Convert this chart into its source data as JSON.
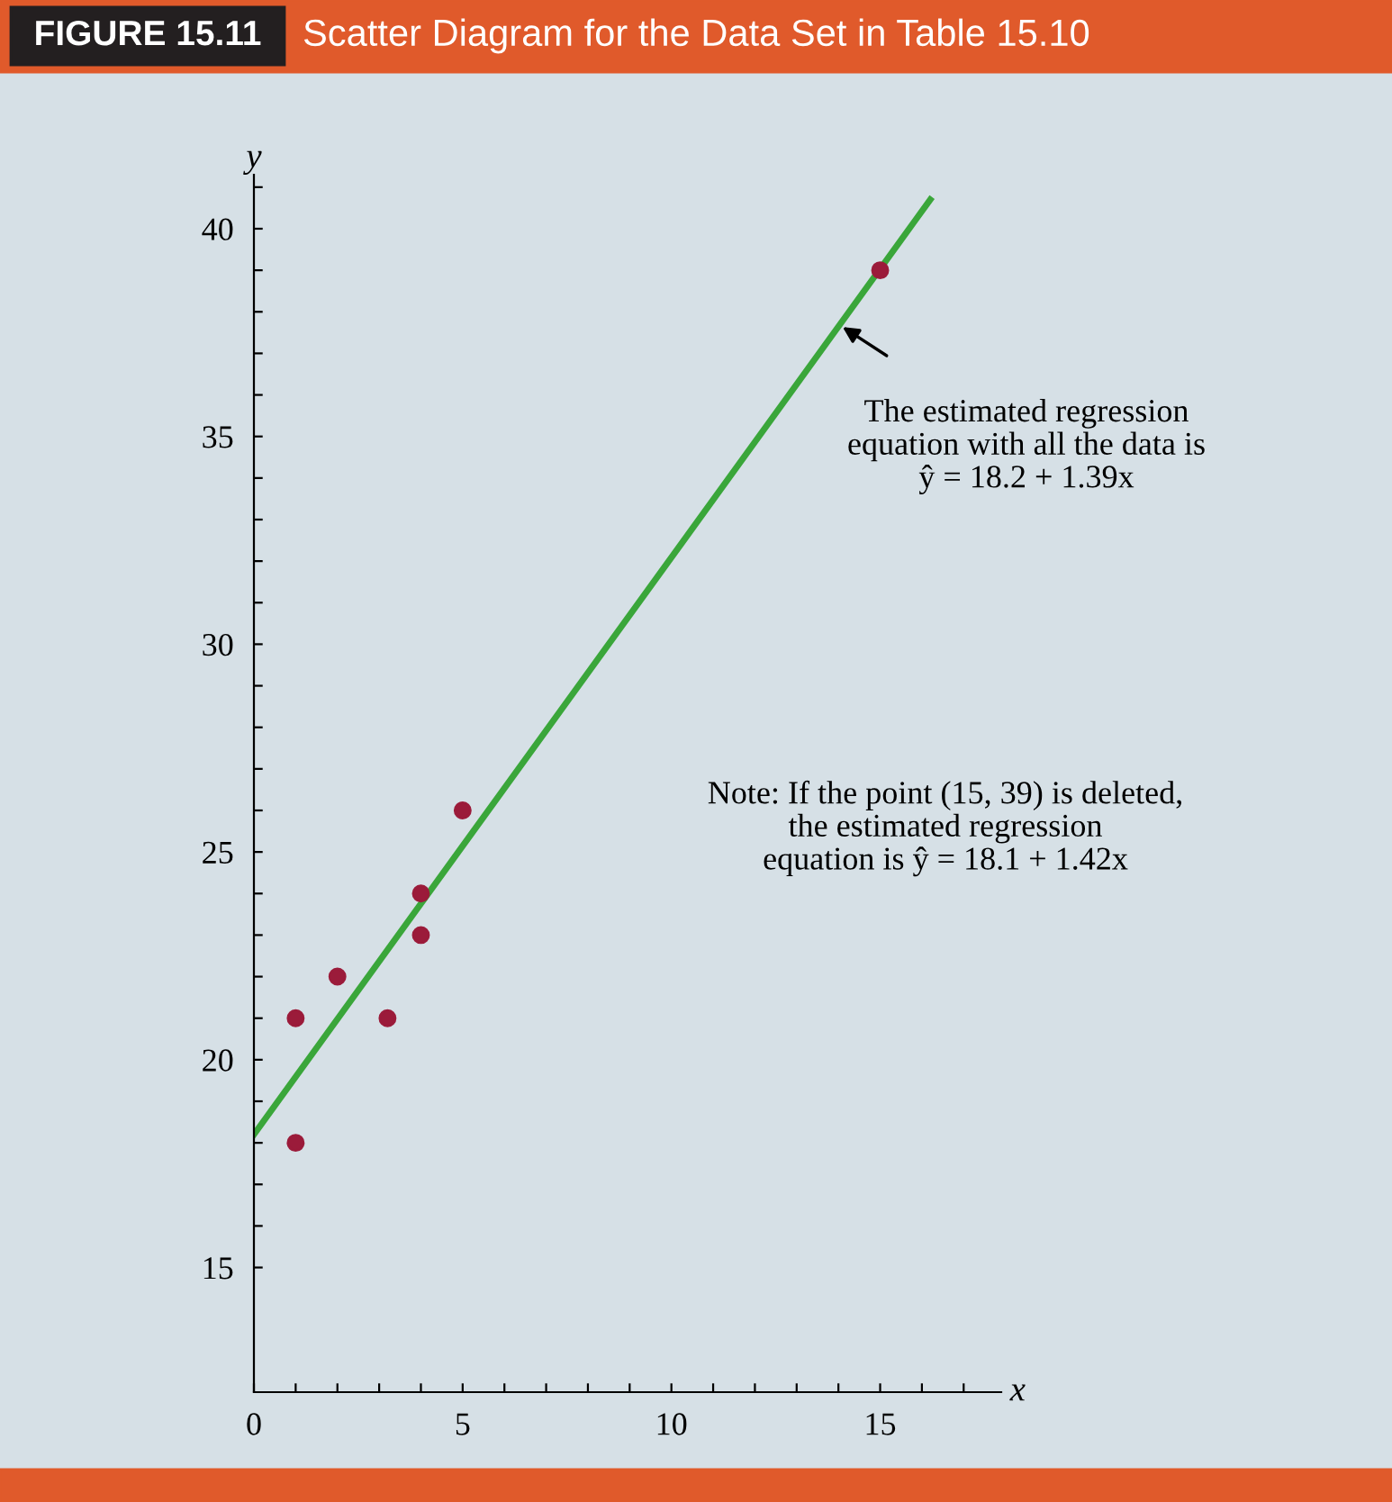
{
  "chart_data": {
    "type": "scatter",
    "title": "Scatter Diagram for the Data Set in Table 15.10",
    "subtitle": "FIGURE 15.11",
    "xlabel": "x",
    "ylabel": "y",
    "series": [
      {
        "marker": "circle",
        "color": "#9b1b3a",
        "x": [
          1,
          1,
          2,
          3.2,
          4,
          4,
          5,
          15
        ],
        "values": [
          18,
          21,
          22,
          21,
          24,
          23,
          26,
          39
        ]
      },
      {
        "type": "line",
        "color": "#3aa63a",
        "x": [
          0,
          16.2
        ],
        "values": [
          18.2,
          40.7
        ]
      }
    ],
    "xlim": [
      0,
      17.9
    ],
    "ylim": [
      12,
      41.3
    ],
    "xticks": [
      0,
      {
        "value": 1,
        "label": null
      },
      {
        "value": 2,
        "label": null
      },
      {
        "value": 3,
        "label": null
      },
      {
        "value": 4,
        "label": null
      },
      5,
      {
        "value": 6,
        "label": null
      },
      {
        "value": 7,
        "label": null
      },
      {
        "value": 8,
        "label": null
      },
      {
        "value": 9,
        "label": null
      },
      10,
      {
        "value": 11,
        "label": null
      },
      {
        "value": 12,
        "label": null
      },
      {
        "value": 13,
        "label": null
      },
      {
        "value": 14,
        "label": null
      },
      15,
      {
        "value": 16,
        "label": null
      },
      {
        "value": 17,
        "label": null
      }
    ],
    "yticks": [
      15,
      {
        "value": 16,
        "label": null
      },
      {
        "value": 17,
        "label": null
      },
      {
        "value": 18,
        "label": null
      },
      {
        "value": 19,
        "label": null
      },
      20,
      {
        "value": 21,
        "label": null
      },
      {
        "value": 22,
        "label": null
      },
      {
        "value": 23,
        "label": null
      },
      {
        "value": 24,
        "label": null
      },
      25,
      {
        "value": 26,
        "label": null
      },
      {
        "value": 27,
        "label": null
      },
      {
        "value": 28,
        "label": null
      },
      {
        "value": 29,
        "label": null
      },
      30,
      {
        "value": 31,
        "label": null
      },
      {
        "value": 32,
        "label": null
      },
      {
        "value": 33,
        "label": null
      },
      {
        "value": 34,
        "label": null
      },
      35,
      {
        "value": 36,
        "label": null
      },
      {
        "value": 37,
        "label": null
      },
      {
        "value": 38,
        "label": null
      },
      {
        "value": 39,
        "label": null
      },
      40,
      {
        "value": 41,
        "label": null
      }
    ],
    "grid": false,
    "annotations": [
      {
        "text": "The estimated regression\nequation with all the data is\nŷ = 18.2 + 1.39x",
        "x": 14,
        "y": 37.7
      },
      "Note: If the point (15, 39) is deleted,\nthe estimated regression\nequation is ŷ = 18.1 + 1.42x"
    ]
  }
}
